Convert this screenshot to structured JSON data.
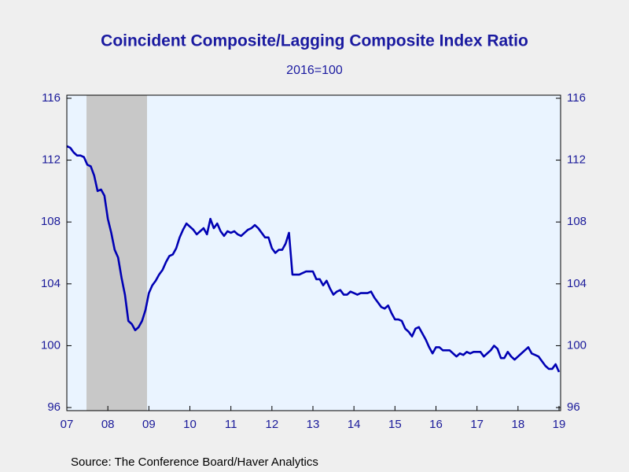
{
  "chart_data": {
    "type": "line",
    "title": "Coincident Composite/Lagging Composite Index Ratio",
    "subtitle": "2016=100",
    "source": "Source:  The Conference Board/Haver Analytics",
    "categories": [
      "07",
      null,
      null,
      null,
      null,
      null,
      null,
      null,
      null,
      null,
      null,
      null,
      "08",
      null,
      null,
      null,
      null,
      null,
      null,
      null,
      null,
      null,
      null,
      null,
      "09",
      null,
      null,
      null,
      null,
      null,
      null,
      null,
      null,
      null,
      null,
      null,
      "10",
      null,
      null,
      null,
      null,
      null,
      null,
      null,
      null,
      null,
      null,
      null,
      "11",
      null,
      null,
      null,
      null,
      null,
      null,
      null,
      null,
      null,
      null,
      null,
      "12",
      null,
      null,
      null,
      null,
      null,
      null,
      null,
      null,
      null,
      null,
      null,
      "13",
      null,
      null,
      null,
      null,
      null,
      null,
      null,
      null,
      null,
      null,
      null,
      "14",
      null,
      null,
      null,
      null,
      null,
      null,
      null,
      null,
      null,
      null,
      null,
      "15",
      null,
      null,
      null,
      null,
      null,
      null,
      null,
      null,
      null,
      null,
      null,
      "16",
      null,
      null,
      null,
      null,
      null,
      null,
      null,
      null,
      null,
      null,
      null,
      "17",
      null,
      null,
      null,
      null,
      null,
      null,
      null,
      null,
      null,
      null,
      null,
      "18",
      null,
      null,
      null,
      null,
      null,
      null,
      null,
      null,
      null,
      null,
      null,
      "19"
    ],
    "values": [
      112.9,
      112.8,
      112.5,
      112.3,
      112.3,
      112.2,
      111.7,
      111.6,
      111.0,
      110.0,
      110.1,
      109.7,
      108.2,
      107.3,
      106.2,
      105.7,
      104.4,
      103.3,
      101.6,
      101.4,
      101.0,
      101.2,
      101.6,
      102.3,
      103.4,
      103.9,
      104.2,
      104.6,
      104.9,
      105.4,
      105.8,
      105.9,
      106.3,
      107.0,
      107.5,
      107.9,
      107.7,
      107.5,
      107.2,
      107.4,
      107.6,
      107.2,
      108.2,
      107.6,
      107.9,
      107.4,
      107.1,
      107.4,
      107.3,
      107.4,
      107.2,
      107.1,
      107.3,
      107.5,
      107.6,
      107.8,
      107.6,
      107.3,
      107.0,
      107.0,
      106.3,
      106.0,
      106.2,
      106.2,
      106.6,
      107.3,
      104.6,
      104.6,
      104.6,
      104.7,
      104.8,
      104.8,
      104.8,
      104.3,
      104.3,
      103.9,
      104.2,
      103.7,
      103.3,
      103.5,
      103.6,
      103.3,
      103.3,
      103.5,
      103.4,
      103.3,
      103.4,
      103.4,
      103.4,
      103.5,
      103.1,
      102.8,
      102.5,
      102.4,
      102.6,
      102.1,
      101.7,
      101.7,
      101.6,
      101.1,
      100.9,
      100.6,
      101.1,
      101.2,
      100.8,
      100.4,
      99.9,
      99.5,
      99.9,
      99.9,
      99.7,
      99.7,
      99.7,
      99.5,
      99.3,
      99.5,
      99.4,
      99.6,
      99.5,
      99.6,
      99.6,
      99.6,
      99.3,
      99.5,
      99.7,
      100.0,
      99.8,
      99.2,
      99.2,
      99.6,
      99.3,
      99.1,
      99.3,
      99.5,
      99.7,
      99.9,
      99.5,
      99.4,
      99.3,
      99.0,
      98.7,
      98.5,
      98.5,
      98.8,
      98.3
    ],
    "color": "#0000b4",
    "ylim": [
      95.8,
      116.2
    ],
    "yticks": [
      96,
      100,
      104,
      108,
      112,
      116
    ],
    "y2lim": [
      95.8,
      116.2
    ],
    "y2ticks": [
      96,
      100,
      104,
      108,
      112,
      116
    ],
    "grid": false
  }
}
